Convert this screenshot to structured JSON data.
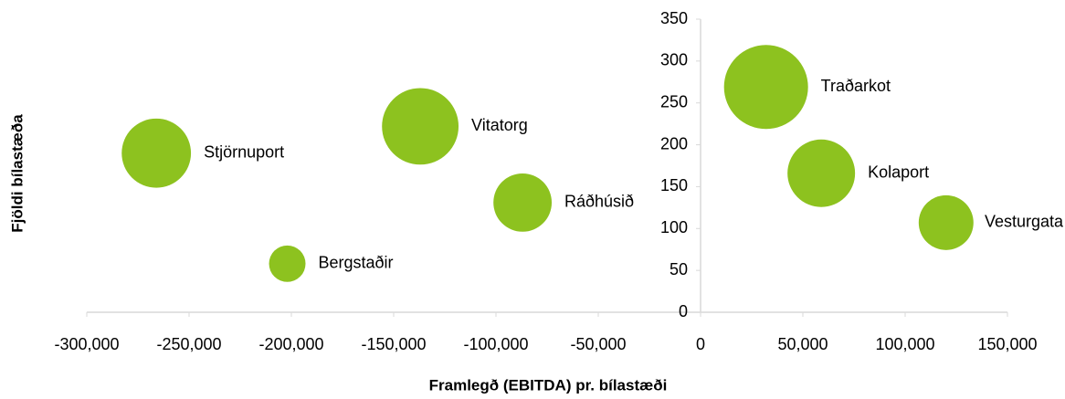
{
  "chart_data": {
    "type": "bubble",
    "labels": [
      "Stjörnuport",
      "Bergstaðir",
      "Vitatorg",
      "Ráðhúsið",
      "Traðarkot",
      "Kolaport",
      "Vesturgata"
    ],
    "x": [
      -266000,
      -202000,
      -137000,
      -87000,
      32000,
      59000,
      120000
    ],
    "values": [
      190,
      58,
      222,
      131,
      269,
      166,
      107
    ],
    "sizes": [
      1440,
      400,
      1760,
      1020,
      2120,
      1370,
      900
    ],
    "color": "#8dc21f",
    "xlabel": "Framlegð (EBITDA) pr. bílastæði",
    "ylabel": "Fjöldi bílastæða",
    "xlim": [
      -300000,
      150000
    ],
    "ylim": [
      0,
      350
    ],
    "xticks": [
      {
        "value": -300000,
        "label": "-300,000"
      },
      {
        "value": -250000,
        "label": "-250,000"
      },
      {
        "value": -200000,
        "label": "-200,000"
      },
      {
        "value": -150000,
        "label": "-150,000"
      },
      {
        "value": -100000,
        "label": "-100,000"
      },
      {
        "value": -50000,
        "label": "-50,000"
      },
      0,
      {
        "value": 50000,
        "label": "50,000"
      },
      {
        "value": 100000,
        "label": "100,000"
      },
      {
        "value": 150000,
        "label": "150,000"
      }
    ],
    "yticks": [
      0,
      50,
      100,
      150,
      200,
      250,
      300,
      350
    ]
  }
}
